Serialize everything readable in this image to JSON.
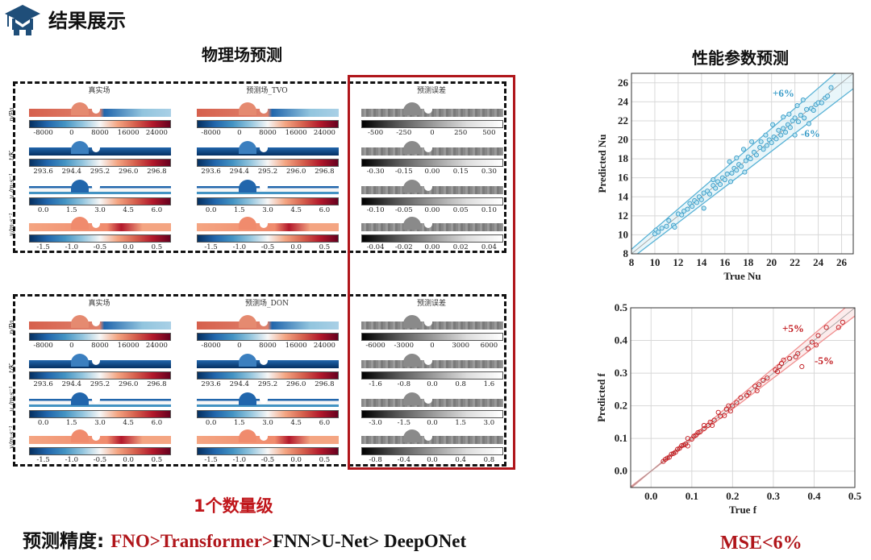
{
  "header": {
    "title": "结果展示",
    "icon": "graduation-cap-icon"
  },
  "left_section": {
    "title": "物理场预测",
    "groups": [
      {
        "panels": [
          {
            "title": "真实场",
            "type": "true"
          },
          {
            "title": "预测场_TVO",
            "type": "pred"
          },
          {
            "title": "预测误差",
            "type": "error"
          }
        ],
        "rows": [
          {
            "ylabel": "p/Pa",
            "ticks": [
              "-8000",
              "0",
              "8000",
              "16000",
              "24000"
            ],
            "err_ticks": [
              "-500",
              "-250",
              "0",
              "250",
              "500"
            ]
          },
          {
            "ylabel": "t/K",
            "ticks": [
              "293.6",
              "294.4",
              "295.2",
              "296.0",
              "296.8"
            ],
            "err_ticks": [
              "-0.30",
              "-0.15",
              "0.00",
              "0.15",
              "0.30"
            ]
          },
          {
            "ylabel": "u /m·s⁻¹",
            "ticks": [
              "0.0",
              "1.5",
              "3.0",
              "4.5",
              "6.0"
            ],
            "err_ticks": [
              "-0.10",
              "-0.05",
              "0.00",
              "0.05",
              "0.10"
            ]
          },
          {
            "ylabel": "v/m·s⁻¹",
            "ticks": [
              "-1.5",
              "-1.0",
              "-0.5",
              "0.0",
              "0.5"
            ],
            "err_ticks": [
              "-0.04",
              "-0.02",
              "0.00",
              "0.02",
              "0.04"
            ]
          }
        ]
      },
      {
        "panels": [
          {
            "title": "真实场",
            "type": "true"
          },
          {
            "title": "预测场_DON",
            "type": "pred"
          },
          {
            "title": "预测误差",
            "type": "error"
          }
        ],
        "rows": [
          {
            "ylabel": "p/Pa",
            "ticks": [
              "-8000",
              "0",
              "8000",
              "16000",
              "24000"
            ],
            "err_ticks": [
              "-6000",
              "-3000",
              "0",
              "3000",
              "6000"
            ]
          },
          {
            "ylabel": "t/K",
            "ticks": [
              "293.6",
              "294.4",
              "295.2",
              "296.0",
              "296.8"
            ],
            "err_ticks": [
              "-1.6",
              "-0.8",
              "0.0",
              "0.8",
              "1.6"
            ]
          },
          {
            "ylabel": "u /m·s⁻¹",
            "ticks": [
              "0.0",
              "1.5",
              "3.0",
              "4.5",
              "6.0"
            ],
            "err_ticks": [
              "-3.0",
              "-1.5",
              "0.0",
              "1.5",
              "3.0"
            ]
          },
          {
            "ylabel": "v/m·s⁻¹",
            "ticks": [
              "-1.5",
              "-1.0",
              "-0.5",
              "0.0",
              "0.5"
            ],
            "err_ticks": [
              "-0.8",
              "-0.4",
              "0.0",
              "0.4",
              "0.8"
            ]
          }
        ]
      }
    ],
    "magnitude_note": "1个数量级",
    "accuracy_label": "预测精度:",
    "accuracy_red": "FNO>Transformer>",
    "accuracy_black": "FNN>U-Net> DeepONet"
  },
  "right_section": {
    "title": "性能参数预测",
    "mse_note": "MSE<6%"
  },
  "colors": {
    "accent_red": "#b0161b",
    "nu_blue": "#3a9cc8",
    "f_red": "#c0161b",
    "header_icon": "#1f4e79"
  },
  "chart_data": [
    {
      "type": "scatter",
      "title": "",
      "xlabel": "True Nu",
      "ylabel": "Predicted Nu",
      "xlim": [
        8,
        27
      ],
      "ylim": [
        8,
        27
      ],
      "xticks": [
        "8",
        "10",
        "12",
        "14",
        "16",
        "18",
        "20",
        "22",
        "24",
        "26"
      ],
      "yticks": [
        "8",
        "10",
        "12",
        "14",
        "16",
        "18",
        "20",
        "22",
        "24",
        "26"
      ],
      "grid": true,
      "band_pct": 6,
      "annotations": [
        "+6%",
        "-6%"
      ],
      "series": [
        {
          "name": "Nu",
          "points": [
            [
              10.0,
              10.1
            ],
            [
              10.1,
              10.5
            ],
            [
              10.3,
              10.3
            ],
            [
              10.6,
              10.7
            ],
            [
              11.0,
              10.9
            ],
            [
              11.2,
              11.5
            ],
            [
              11.6,
              11.0
            ],
            [
              11.7,
              10.8
            ],
            [
              12.0,
              12.2
            ],
            [
              12.3,
              12.1
            ],
            [
              12.5,
              12.5
            ],
            [
              12.8,
              12.7
            ],
            [
              13.0,
              13.3
            ],
            [
              13.2,
              13.0
            ],
            [
              13.4,
              13.6
            ],
            [
              13.6,
              13.4
            ],
            [
              13.8,
              14.0
            ],
            [
              14.0,
              13.7
            ],
            [
              14.2,
              14.4
            ],
            [
              14.2,
              12.8
            ],
            [
              14.5,
              14.6
            ],
            [
              14.7,
              14.3
            ],
            [
              15.0,
              15.2
            ],
            [
              15.0,
              15.8
            ],
            [
              15.2,
              14.9
            ],
            [
              15.4,
              15.6
            ],
            [
              15.6,
              15.3
            ],
            [
              15.8,
              16.0
            ],
            [
              16.0,
              15.8
            ],
            [
              16.2,
              16.4
            ],
            [
              16.4,
              17.7
            ],
            [
              16.5,
              15.6
            ],
            [
              16.6,
              16.5
            ],
            [
              16.8,
              17.0
            ],
            [
              17.0,
              16.8
            ],
            [
              17.0,
              18.1
            ],
            [
              17.2,
              17.4
            ],
            [
              17.4,
              17.2
            ],
            [
              17.6,
              19.0
            ],
            [
              17.7,
              16.6
            ],
            [
              17.8,
              17.8
            ],
            [
              18.0,
              18.2
            ],
            [
              18.2,
              18.0
            ],
            [
              18.3,
              19.8
            ],
            [
              18.5,
              18.7
            ],
            [
              18.7,
              18.4
            ],
            [
              19.0,
              19.2
            ],
            [
              19.1,
              19.8
            ],
            [
              19.3,
              19.0
            ],
            [
              19.5,
              20.5
            ],
            [
              19.6,
              19.4
            ],
            [
              19.8,
              20.0
            ],
            [
              20.0,
              19.7
            ],
            [
              20.1,
              21.6
            ],
            [
              20.2,
              20.3
            ],
            [
              20.4,
              20.1
            ],
            [
              20.6,
              21.0
            ],
            [
              20.8,
              20.5
            ],
            [
              21.0,
              22.4
            ],
            [
              21.0,
              21.2
            ],
            [
              21.2,
              20.8
            ],
            [
              21.4,
              21.6
            ],
            [
              21.5,
              22.7
            ],
            [
              21.6,
              21.3
            ],
            [
              21.8,
              22.0
            ],
            [
              22.0,
              20.5
            ],
            [
              22.0,
              22.3
            ],
            [
              22.2,
              23.6
            ],
            [
              22.3,
              21.9
            ],
            [
              22.5,
              22.6
            ],
            [
              22.7,
              24.2
            ],
            [
              22.8,
              22.3
            ],
            [
              23.0,
              23.2
            ],
            [
              23.2,
              21.7
            ],
            [
              23.4,
              23.3
            ],
            [
              23.6,
              23.1
            ],
            [
              23.8,
              23.7
            ],
            [
              24.0,
              23.9
            ],
            [
              24.3,
              23.9
            ],
            [
              24.6,
              24.4
            ],
            [
              24.8,
              24.6
            ],
            [
              25.1,
              25.5
            ]
          ]
        }
      ]
    },
    {
      "type": "scatter",
      "title": "",
      "xlabel": "True f",
      "ylabel": "Predicted f",
      "xlim": [
        -0.05,
        0.5
      ],
      "ylim": [
        -0.05,
        0.5
      ],
      "xticks": [
        "0.0",
        "0.1",
        "0.2",
        "0.3",
        "0.4",
        "0.5"
      ],
      "yticks": [
        "0.0",
        "0.1",
        "0.2",
        "0.3",
        "0.4",
        "0.5"
      ],
      "grid": true,
      "band_pct": 5,
      "annotations": [
        "+5%",
        "-5%"
      ],
      "series": [
        {
          "name": "f",
          "points": [
            [
              0.03,
              0.03
            ],
            [
              0.035,
              0.036
            ],
            [
              0.04,
              0.04
            ],
            [
              0.045,
              0.043
            ],
            [
              0.05,
              0.052
            ],
            [
              0.055,
              0.054
            ],
            [
              0.06,
              0.058
            ],
            [
              0.065,
              0.067
            ],
            [
              0.07,
              0.07
            ],
            [
              0.075,
              0.078
            ],
            [
              0.08,
              0.08
            ],
            [
              0.085,
              0.083
            ],
            [
              0.09,
              0.077
            ],
            [
              0.09,
              0.1
            ],
            [
              0.1,
              0.098
            ],
            [
              0.105,
              0.107
            ],
            [
              0.11,
              0.11
            ],
            [
              0.115,
              0.118
            ],
            [
              0.12,
              0.12
            ],
            [
              0.13,
              0.13
            ],
            [
              0.13,
              0.14
            ],
            [
              0.14,
              0.14
            ],
            [
              0.145,
              0.15
            ],
            [
              0.15,
              0.14
            ],
            [
              0.155,
              0.156
            ],
            [
              0.165,
              0.18
            ],
            [
              0.17,
              0.168
            ],
            [
              0.18,
              0.17
            ],
            [
              0.185,
              0.19
            ],
            [
              0.19,
              0.2
            ],
            [
              0.195,
              0.184
            ],
            [
              0.2,
              0.2
            ],
            [
              0.21,
              0.21
            ],
            [
              0.22,
              0.225
            ],
            [
              0.235,
              0.232
            ],
            [
              0.24,
              0.24
            ],
            [
              0.255,
              0.26
            ],
            [
              0.26,
              0.246
            ],
            [
              0.265,
              0.265
            ],
            [
              0.275,
              0.278
            ],
            [
              0.285,
              0.285
            ],
            [
              0.305,
              0.31
            ],
            [
              0.31,
              0.305
            ],
            [
              0.315,
              0.32
            ],
            [
              0.32,
              0.33
            ],
            [
              0.325,
              0.34
            ],
            [
              0.34,
              0.345
            ],
            [
              0.355,
              0.35
            ],
            [
              0.36,
              0.36
            ],
            [
              0.37,
              0.32
            ],
            [
              0.385,
              0.375
            ],
            [
              0.395,
              0.395
            ],
            [
              0.405,
              0.386
            ],
            [
              0.41,
              0.415
            ],
            [
              0.43,
              0.44
            ],
            [
              0.46,
              0.44
            ],
            [
              0.47,
              0.456
            ]
          ]
        }
      ]
    }
  ]
}
